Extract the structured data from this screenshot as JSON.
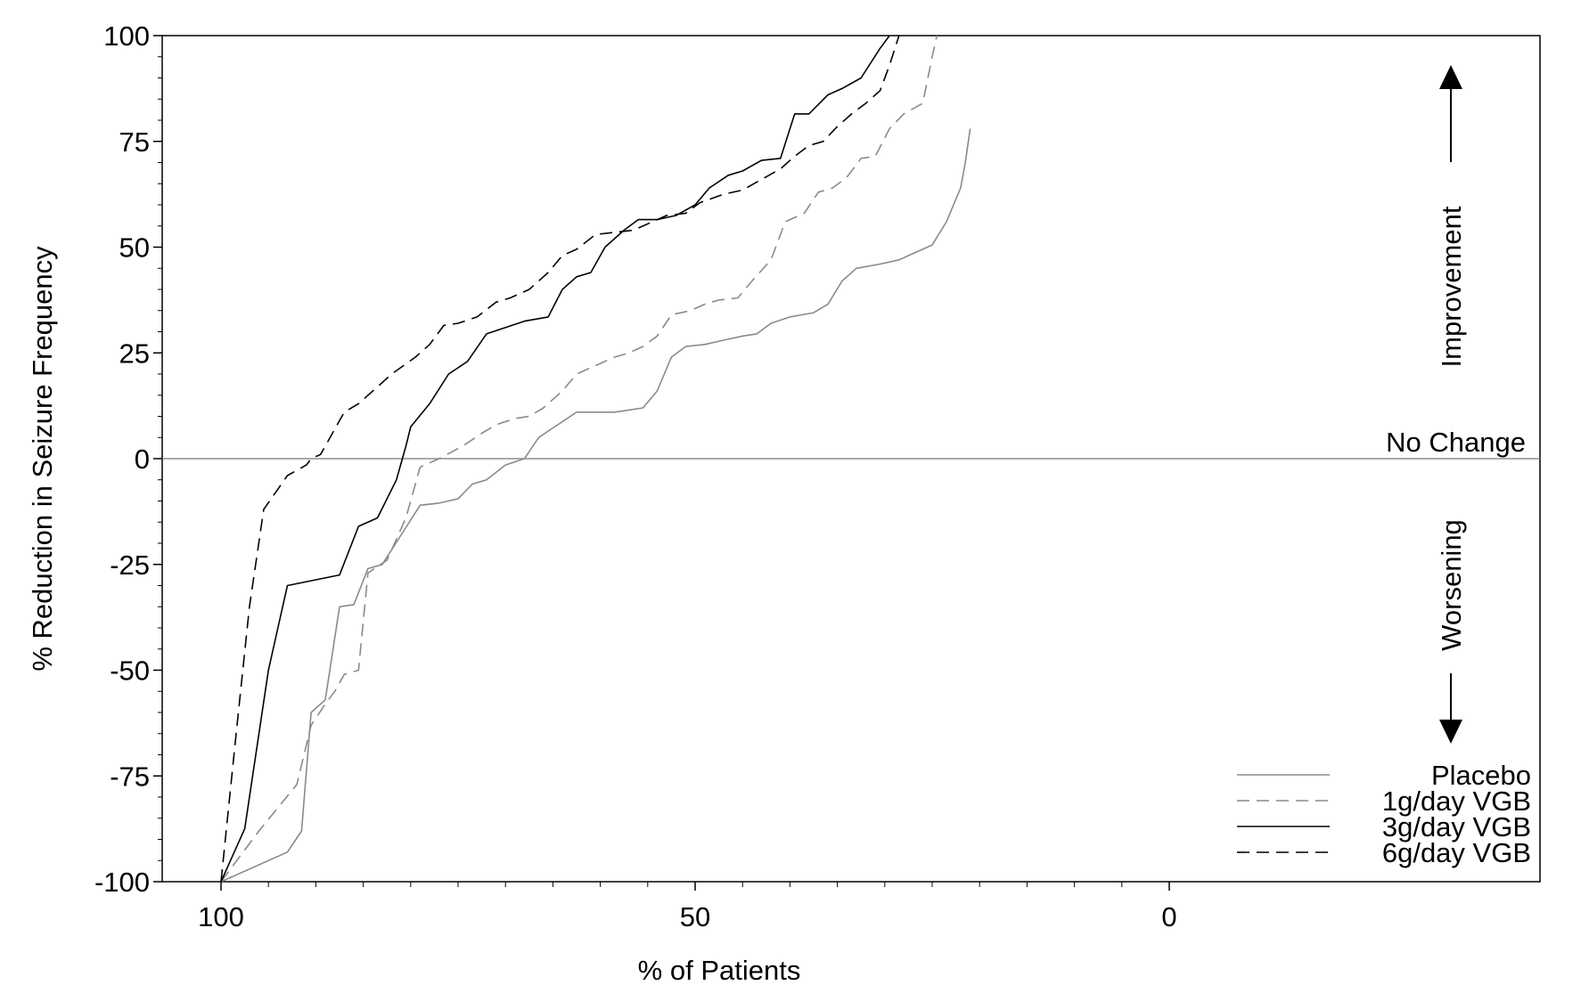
{
  "chart_data": {
    "type": "line",
    "title": "",
    "xlabel": "% of Patients",
    "ylabel": "% Reduction in Seizure Frequency",
    "xlim": [
      100,
      0
    ],
    "ylim": [
      -100,
      100
    ],
    "x_ticks": [
      100,
      50,
      0
    ],
    "y_ticks": [
      100,
      75,
      50,
      25,
      0,
      -25,
      -50,
      -75,
      -100
    ],
    "x_tick_labels": [
      "100",
      "50",
      "0"
    ],
    "y_tick_labels": [
      "100",
      "75",
      "50",
      "25",
      "0",
      "-25",
      "-50",
      "-75",
      "-100"
    ],
    "grid": false,
    "legend_position": "bottom-right",
    "reference_line": {
      "y": 0,
      "label": "No Change"
    },
    "annotations": {
      "improvement": "Improvement",
      "worsening": "Worsening"
    },
    "series": [
      {
        "name": "Placebo",
        "color": "#8a8a8a",
        "dash": "solid",
        "points": [
          [
            100,
            -100
          ],
          [
            93,
            -93
          ],
          [
            91.5,
            -88
          ],
          [
            90.5,
            -60
          ],
          [
            89,
            -57
          ],
          [
            87.5,
            -35
          ],
          [
            86,
            -34.5
          ],
          [
            84.5,
            -26
          ],
          [
            83,
            -25
          ],
          [
            81,
            -18
          ],
          [
            79,
            -11
          ],
          [
            77,
            -10.5
          ],
          [
            75,
            -9.5
          ],
          [
            73.5,
            -6
          ],
          [
            72,
            -5
          ],
          [
            70,
            -1.5
          ],
          [
            68,
            0
          ],
          [
            66.5,
            5
          ],
          [
            64.5,
            8
          ],
          [
            62.5,
            11
          ],
          [
            58.5,
            11
          ],
          [
            55.5,
            12
          ],
          [
            54,
            16
          ],
          [
            52.5,
            24
          ],
          [
            51,
            26.5
          ],
          [
            49,
            27
          ],
          [
            47,
            28
          ],
          [
            45,
            29
          ],
          [
            43.5,
            29.5
          ],
          [
            42,
            32
          ],
          [
            40,
            33.5
          ],
          [
            37.5,
            34.5
          ],
          [
            36,
            36.5
          ],
          [
            34.5,
            42
          ],
          [
            33,
            45
          ],
          [
            30.5,
            46
          ],
          [
            28.5,
            47
          ],
          [
            27,
            48.5
          ],
          [
            25,
            50.5
          ],
          [
            23.5,
            56
          ],
          [
            22,
            64
          ],
          [
            21.5,
            70
          ],
          [
            21,
            78
          ]
        ]
      },
      {
        "name": "1g/day VGB",
        "color": "#8a8a8a",
        "dash": "dashed",
        "points": [
          [
            100,
            -100
          ],
          [
            96,
            -88
          ],
          [
            92,
            -77
          ],
          [
            90.5,
            -63
          ],
          [
            89,
            -58
          ],
          [
            88,
            -55
          ],
          [
            87,
            -51
          ],
          [
            85.5,
            -50
          ],
          [
            84.5,
            -27
          ],
          [
            82.5,
            -24
          ],
          [
            80.5,
            -14
          ],
          [
            79,
            -2
          ],
          [
            77,
            0
          ],
          [
            74.5,
            3
          ],
          [
            72.5,
            6
          ],
          [
            71,
            8
          ],
          [
            69,
            9.5
          ],
          [
            67.5,
            10
          ],
          [
            66,
            12
          ],
          [
            64,
            16
          ],
          [
            62.5,
            20
          ],
          [
            60.5,
            22
          ],
          [
            58.5,
            24
          ],
          [
            57,
            25
          ],
          [
            55.5,
            26.5
          ],
          [
            54,
            29
          ],
          [
            52.5,
            34
          ],
          [
            50.5,
            35
          ],
          [
            49,
            36.5
          ],
          [
            47.5,
            37.5
          ],
          [
            45.5,
            38
          ],
          [
            44,
            42
          ],
          [
            42,
            47
          ],
          [
            40.5,
            56
          ],
          [
            38.5,
            58
          ],
          [
            37,
            63
          ],
          [
            35.5,
            64
          ],
          [
            34,
            66.5
          ],
          [
            32.5,
            71
          ],
          [
            31,
            71.5
          ],
          [
            29.5,
            78
          ],
          [
            28,
            81.5
          ],
          [
            26,
            84
          ],
          [
            25,
            95
          ],
          [
            24.5,
            100
          ]
        ]
      },
      {
        "name": "3g/day VGB",
        "color": "#000000",
        "dash": "solid",
        "points": [
          [
            100,
            -100
          ],
          [
            97.5,
            -87.5
          ],
          [
            95,
            -50
          ],
          [
            93,
            -30
          ],
          [
            87.5,
            -27.5
          ],
          [
            85.5,
            -16
          ],
          [
            83.5,
            -14
          ],
          [
            81.5,
            -5
          ],
          [
            80.5,
            3
          ],
          [
            80,
            7.5
          ],
          [
            78,
            13
          ],
          [
            76,
            20
          ],
          [
            74,
            23
          ],
          [
            72,
            29.5
          ],
          [
            70,
            31
          ],
          [
            68,
            32.5
          ],
          [
            65.5,
            33.5
          ],
          [
            64,
            40
          ],
          [
            62.5,
            43
          ],
          [
            61,
            44
          ],
          [
            59.5,
            50
          ],
          [
            57.5,
            54
          ],
          [
            56,
            56.5
          ],
          [
            54,
            56.5
          ],
          [
            52,
            57.5
          ],
          [
            50,
            60
          ],
          [
            48.5,
            64
          ],
          [
            46.5,
            67
          ],
          [
            45,
            68
          ],
          [
            43,
            70.5
          ],
          [
            41,
            71
          ],
          [
            39.5,
            81.5
          ],
          [
            38,
            81.5
          ],
          [
            36,
            86
          ],
          [
            34.5,
            87.5
          ],
          [
            32.5,
            90
          ],
          [
            30.5,
            97
          ],
          [
            29.5,
            100
          ]
        ]
      },
      {
        "name": "6g/day VGB",
        "color": "#000000",
        "dash": "dashed",
        "points": [
          [
            100,
            -100
          ],
          [
            98.5,
            -67
          ],
          [
            97,
            -35
          ],
          [
            95.5,
            -12
          ],
          [
            93,
            -4
          ],
          [
            91,
            -1.5
          ],
          [
            90.5,
            0
          ],
          [
            89.5,
            1
          ],
          [
            87,
            11
          ],
          [
            85.5,
            13
          ],
          [
            83.5,
            17
          ],
          [
            82,
            20
          ],
          [
            79.5,
            24
          ],
          [
            78,
            27
          ],
          [
            76.5,
            31.5
          ],
          [
            75,
            32
          ],
          [
            73,
            33.5
          ],
          [
            71,
            37
          ],
          [
            69.5,
            38
          ],
          [
            67.5,
            40
          ],
          [
            65.5,
            44
          ],
          [
            64,
            48
          ],
          [
            62.5,
            49.5
          ],
          [
            60.5,
            53
          ],
          [
            58.5,
            53.5
          ],
          [
            56.5,
            54
          ],
          [
            54.5,
            56
          ],
          [
            53,
            57.5
          ],
          [
            51,
            58
          ],
          [
            49.5,
            60.5
          ],
          [
            47,
            62.5
          ],
          [
            45,
            63.5
          ],
          [
            43,
            66
          ],
          [
            41,
            68.5
          ],
          [
            39.5,
            71.5
          ],
          [
            38,
            74
          ],
          [
            36.5,
            75
          ],
          [
            35,
            78.5
          ],
          [
            33.5,
            81.5
          ],
          [
            32,
            84
          ],
          [
            30.5,
            87
          ],
          [
            29.5,
            93
          ],
          [
            28.5,
            100
          ]
        ]
      }
    ]
  }
}
